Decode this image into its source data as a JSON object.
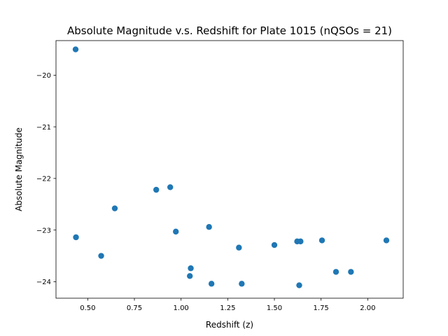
{
  "chart_data": {
    "type": "scatter",
    "title": "Absolute Magnitude v.s. Redshift for Plate 1015 (nQSOs = 21)",
    "xlabel": "Redshift (z)",
    "ylabel": "Absolute Magnitude",
    "xlim": [
      0.33,
      2.19
    ],
    "ylim": [
      -24.32,
      -19.33
    ],
    "xticks": [
      0.5,
      0.75,
      1.0,
      1.25,
      1.5,
      1.75,
      2.0
    ],
    "xtick_labels": [
      "0.50",
      "0.75",
      "1.00",
      "1.25",
      "1.50",
      "1.75",
      "2.00"
    ],
    "yticks": [
      -20,
      -21,
      -22,
      -23,
      -24
    ],
    "ytick_labels": [
      "−20",
      "−21",
      "−22",
      "−23",
      "−24"
    ],
    "grid": false,
    "marker_color": "#1f77b4",
    "points": [
      {
        "x": 0.435,
        "y": -19.5
      },
      {
        "x": 0.437,
        "y": -23.14
      },
      {
        "x": 0.572,
        "y": -23.5
      },
      {
        "x": 0.645,
        "y": -22.58
      },
      {
        "x": 0.867,
        "y": -22.22
      },
      {
        "x": 0.942,
        "y": -22.17
      },
      {
        "x": 0.972,
        "y": -23.03
      },
      {
        "x": 1.047,
        "y": -23.89
      },
      {
        "x": 1.052,
        "y": -23.74
      },
      {
        "x": 1.15,
        "y": -22.94
      },
      {
        "x": 1.163,
        "y": -24.04
      },
      {
        "x": 1.31,
        "y": -23.34
      },
      {
        "x": 1.325,
        "y": -24.04
      },
      {
        "x": 1.5,
        "y": -23.29
      },
      {
        "x": 1.622,
        "y": -23.22
      },
      {
        "x": 1.64,
        "y": -23.22
      },
      {
        "x": 1.633,
        "y": -24.07
      },
      {
        "x": 1.755,
        "y": -23.2
      },
      {
        "x": 1.83,
        "y": -23.81
      },
      {
        "x": 1.91,
        "y": -23.81
      },
      {
        "x": 2.1,
        "y": -23.2
      }
    ]
  }
}
